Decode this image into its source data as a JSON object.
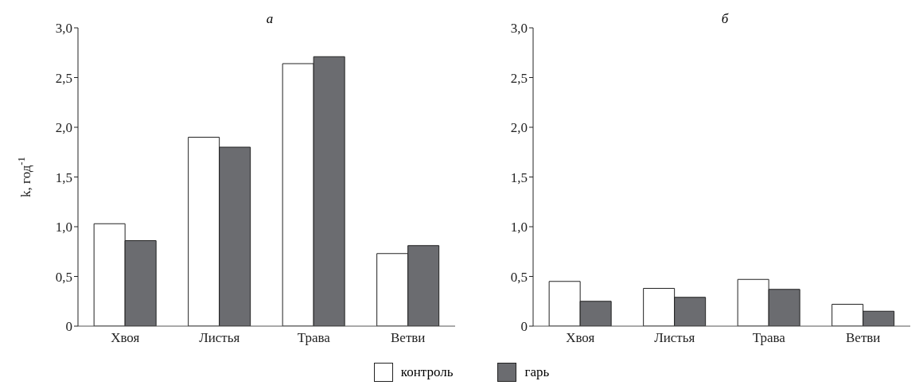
{
  "chart_data": [
    {
      "type": "bar",
      "title": "а",
      "ylabel": "k, год$^{-1}$",
      "categories": [
        "Хвоя",
        "Листья",
        "Трава",
        "Ветви"
      ],
      "series": [
        {
          "name": "контроль",
          "color": "#ffffff",
          "values": [
            1.03,
            1.9,
            2.64,
            0.73
          ]
        },
        {
          "name": "гарь",
          "color": "#6b6c70",
          "values": [
            0.86,
            1.8,
            2.71,
            0.81
          ]
        }
      ],
      "ylim": [
        0,
        3
      ],
      "yticks": [
        0,
        {
          "value": 0.5,
          "label": "0,5"
        },
        {
          "value": 1,
          "label": "1,0"
        },
        {
          "value": 1.5,
          "label": "1,5"
        },
        {
          "value": 2,
          "label": "2,0"
        },
        {
          "value": 2.5,
          "label": "2,5"
        },
        {
          "value": 3,
          "label": "3,0"
        }
      ],
      "grid": false,
      "legend": "bottom"
    },
    {
      "type": "bar",
      "title": "б",
      "categories": [
        "Хвоя",
        "Листья",
        "Трава",
        "Ветви"
      ],
      "series": [
        {
          "color": "#ffffff",
          "values": [
            0.45,
            0.38,
            0.47,
            0.22
          ]
        },
        {
          "color": "#6b6c70",
          "values": [
            0.25,
            0.29,
            0.37,
            0.15
          ]
        }
      ],
      "ylim": [
        0,
        3
      ],
      "yticks": [
        0,
        {
          "value": 0.5,
          "label": "0,5"
        },
        {
          "value": 1,
          "label": "1,0"
        },
        {
          "value": 1.5,
          "label": "1,5"
        },
        {
          "value": 2,
          "label": "2,0"
        },
        {
          "value": 2.5,
          "label": "2,5"
        },
        {
          "value": 3,
          "label": "3,0"
        }
      ],
      "grid": false
    }
  ]
}
